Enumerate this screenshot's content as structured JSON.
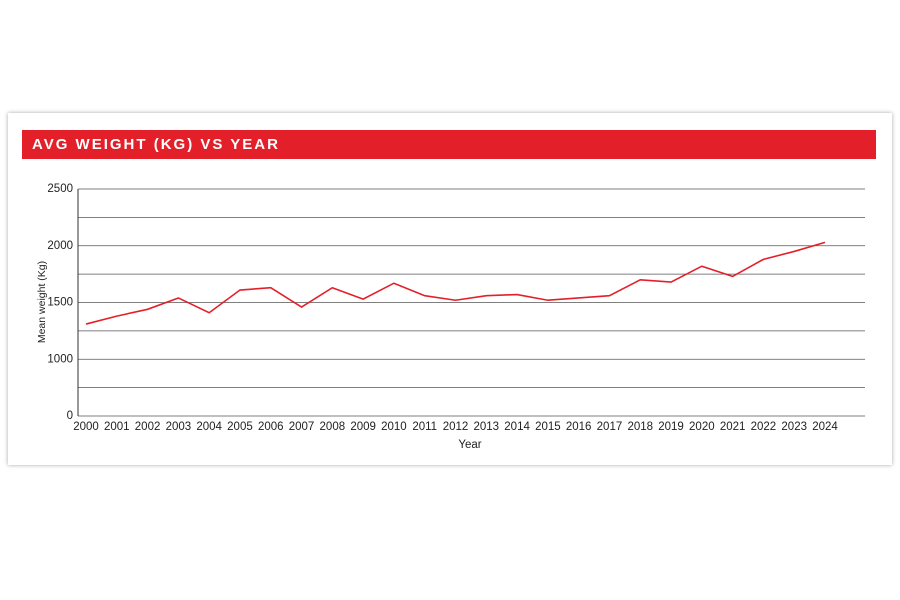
{
  "chart_data": {
    "type": "line",
    "title": "AVG WEIGHT (KG) VS YEAR",
    "x_label": "Year",
    "y_label": "Mean weight (Kg)",
    "categories": [
      "2000",
      "2001",
      "2002",
      "2003",
      "2004",
      "2005",
      "2006",
      "2007",
      "2008",
      "2009",
      "2010",
      "2011",
      "2012",
      "2013",
      "2014",
      "2015",
      "2016",
      "2017",
      "2018",
      "2019",
      "2020",
      "2021",
      "2022",
      "2023",
      "2024"
    ],
    "values": [
      1310,
      1380,
      1440,
      1540,
      1410,
      1610,
      1630,
      1460,
      1630,
      1530,
      1670,
      1560,
      1520,
      1560,
      1570,
      1520,
      1540,
      1560,
      1700,
      1680,
      1820,
      1730,
      1880,
      1950,
      2030
    ],
    "color": "#e3202a",
    "ylim": [
      500,
      2500
    ],
    "yticks": [
      {
        "value": 500,
        "label": "0"
      },
      1000,
      1500,
      2000,
      2500
    ],
    "minor_grid": [
      750,
      1250,
      1750,
      2250
    ],
    "grid": true
  }
}
